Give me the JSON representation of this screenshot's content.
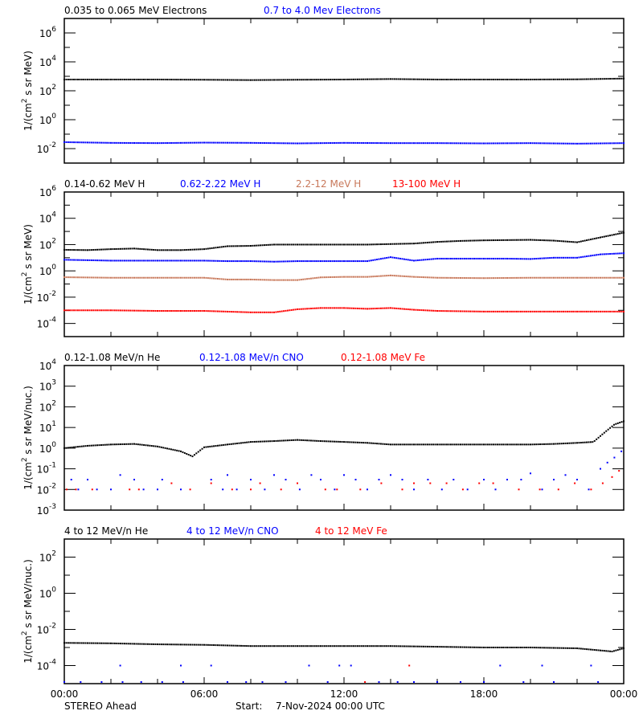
{
  "chart_data": [
    {
      "type": "scatter",
      "ylabel_parts": [
        "1/(cm",
        "2",
        " s sr MeV)"
      ],
      "yscale": "log",
      "ylim": [
        0.001,
        10000000.0
      ],
      "ytick_labels": [
        {
          "exp": "6"
        },
        {
          "exp": "4"
        },
        {
          "exp": "2"
        },
        {
          "exp": "0"
        },
        {
          "exp": "-2"
        }
      ],
      "ytick_exps": [
        6,
        4,
        2,
        0,
        -2
      ],
      "minor_exps": [
        5,
        3,
        1,
        -1
      ],
      "series": [
        {
          "name": "0.035 to 0.065 MeV Electrons",
          "color": "#000000",
          "hours": [
            0,
            2,
            4,
            6,
            8,
            10,
            12,
            14,
            16,
            18,
            20,
            22,
            24
          ],
          "values": [
            600,
            600,
            600,
            580,
            550,
            580,
            600,
            650,
            600,
            600,
            600,
            620,
            700
          ]
        },
        {
          "name": "0.7 to 4.0 Mev Electrons",
          "color": "#0000ff",
          "hours": [
            0,
            2,
            4,
            6,
            8,
            10,
            12,
            14,
            16,
            18,
            20,
            22,
            24
          ],
          "values": [
            0.028,
            0.025,
            0.024,
            0.026,
            0.025,
            0.023,
            0.025,
            0.024,
            0.024,
            0.023,
            0.024,
            0.022,
            0.024
          ]
        }
      ]
    },
    {
      "type": "scatter",
      "ylabel_parts": [
        "1/(cm",
        "2",
        " s sr MeV)"
      ],
      "yscale": "log",
      "ylim": [
        1e-05,
        1000000.0
      ],
      "ytick_labels": [
        {
          "exp": "6"
        },
        {
          "exp": "4"
        },
        {
          "exp": "2"
        },
        {
          "exp": "0"
        },
        {
          "exp": "-2"
        },
        {
          "exp": "-4"
        }
      ],
      "ytick_exps": [
        6,
        4,
        2,
        0,
        -2,
        -4
      ],
      "minor_exps": [
        5,
        3,
        1,
        -1,
        -3
      ],
      "series": [
        {
          "name": "0.14-0.62 MeV H",
          "color": "#000000",
          "hours": [
            0,
            1,
            2,
            3,
            4,
            5,
            6,
            7,
            8,
            9,
            10,
            11,
            12,
            13,
            14,
            15,
            16,
            17,
            18,
            19,
            20,
            21,
            22,
            23,
            24
          ],
          "values": [
            40,
            38,
            45,
            50,
            38,
            38,
            45,
            75,
            80,
            100,
            100,
            100,
            100,
            100,
            110,
            120,
            160,
            190,
            210,
            220,
            230,
            200,
            150,
            350,
            800
          ]
        },
        {
          "name": "0.62-2.22 MeV H",
          "color": "#0000ff",
          "hours": [
            0,
            1,
            2,
            3,
            4,
            5,
            6,
            7,
            8,
            9,
            10,
            11,
            12,
            13,
            14,
            15,
            16,
            17,
            18,
            19,
            20,
            21,
            22,
            23,
            24
          ],
          "values": [
            7,
            6.5,
            6,
            6,
            6,
            6,
            6,
            5.5,
            5.5,
            5,
            5.5,
            5.5,
            5.5,
            5.5,
            11,
            6,
            8.5,
            8.5,
            8.5,
            8.5,
            8,
            10,
            10,
            18,
            22
          ]
        },
        {
          "name": "2.2-12 MeV H",
          "color": "#c8785a",
          "hours": [
            0,
            2,
            4,
            6,
            7,
            8,
            9,
            10,
            11,
            12,
            13,
            14,
            15,
            16,
            18,
            20,
            22,
            24
          ],
          "values": [
            0.33,
            0.3,
            0.3,
            0.3,
            0.22,
            0.22,
            0.2,
            0.2,
            0.32,
            0.35,
            0.35,
            0.45,
            0.35,
            0.3,
            0.28,
            0.3,
            0.3,
            0.3
          ]
        },
        {
          "name": "13-100 MeV H",
          "color": "#ff0000",
          "hours": [
            0,
            2,
            4,
            6,
            8,
            9,
            10,
            11,
            12,
            13,
            14,
            15,
            16,
            18,
            20,
            22,
            24
          ],
          "values": [
            0.001,
            0.001,
            0.0009,
            0.0009,
            0.0007,
            0.0007,
            0.0012,
            0.0015,
            0.0015,
            0.0013,
            0.0015,
            0.0011,
            0.0009,
            0.0008,
            0.0008,
            0.0008,
            0.0008
          ]
        }
      ]
    },
    {
      "type": "scatter",
      "ylabel_parts": [
        "1/(cm",
        "2",
        " s sr MeV/nuc.)"
      ],
      "yscale": "log",
      "ylim": [
        0.001,
        10000.0
      ],
      "ytick_labels": [
        {
          "exp": "4"
        },
        {
          "exp": "3"
        },
        {
          "exp": "2"
        },
        {
          "exp": "1"
        },
        {
          "exp": "0"
        },
        {
          "exp": "-1"
        },
        {
          "exp": "-2"
        },
        {
          "exp": "-3"
        }
      ],
      "ytick_exps": [
        4,
        3,
        2,
        1,
        0,
        -1,
        -2,
        -3
      ],
      "minor_exps": [],
      "series": [
        {
          "name": "0.12-1.08 MeV/n He",
          "color": "#000000",
          "hours": [
            0,
            1,
            2,
            3,
            4,
            5,
            5.5,
            6,
            7,
            8,
            9,
            10,
            11,
            12,
            13,
            14,
            15,
            16,
            17,
            18,
            19,
            20,
            21,
            22,
            22.7,
            23.2,
            23.6,
            24
          ],
          "values": [
            1.0,
            1.3,
            1.5,
            1.6,
            1.2,
            0.7,
            0.4,
            1.1,
            1.5,
            2.0,
            2.2,
            2.5,
            2.2,
            2.0,
            1.8,
            1.5,
            1.5,
            1.5,
            1.5,
            1.5,
            1.5,
            1.5,
            1.6,
            1.8,
            2.0,
            6,
            14,
            20
          ]
        },
        {
          "name": "0.12-1.08 MeV/n CNO",
          "color": "#0000ff",
          "points": [
            [
              0.3,
              0.03
            ],
            [
              0.6,
              0.01
            ],
            [
              1.0,
              0.03
            ],
            [
              1.4,
              0.01
            ],
            [
              2.0,
              0.01
            ],
            [
              2.4,
              0.05
            ],
            [
              3.0,
              0.03
            ],
            [
              3.4,
              0.01
            ],
            [
              4.0,
              0.01
            ],
            [
              4.2,
              0.03
            ],
            [
              5.0,
              0.01
            ],
            [
              6.3,
              0.03
            ],
            [
              6.8,
              0.01
            ],
            [
              7.0,
              0.05
            ],
            [
              7.4,
              0.01
            ],
            [
              8.0,
              0.03
            ],
            [
              8.6,
              0.01
            ],
            [
              9.0,
              0.05
            ],
            [
              9.5,
              0.03
            ],
            [
              10.1,
              0.01
            ],
            [
              10.6,
              0.05
            ],
            [
              11.0,
              0.03
            ],
            [
              11.6,
              0.01
            ],
            [
              12.0,
              0.05
            ],
            [
              12.5,
              0.03
            ],
            [
              13.0,
              0.01
            ],
            [
              13.5,
              0.03
            ],
            [
              14.0,
              0.05
            ],
            [
              14.5,
              0.03
            ],
            [
              15.0,
              0.01
            ],
            [
              15.6,
              0.03
            ],
            [
              16.2,
              0.01
            ],
            [
              16.7,
              0.03
            ],
            [
              17.3,
              0.01
            ],
            [
              18.0,
              0.03
            ],
            [
              18.5,
              0.01
            ],
            [
              19.0,
              0.03
            ],
            [
              19.6,
              0.03
            ],
            [
              20.0,
              0.06
            ],
            [
              20.5,
              0.01
            ],
            [
              21.0,
              0.03
            ],
            [
              21.5,
              0.05
            ],
            [
              22.0,
              0.03
            ],
            [
              22.5,
              0.01
            ],
            [
              23.0,
              0.1
            ],
            [
              23.3,
              0.2
            ],
            [
              23.6,
              0.35
            ],
            [
              23.9,
              0.7
            ]
          ]
        },
        {
          "name": "0.12-1.08 MeV Fe",
          "color": "#ff0000",
          "points": [
            [
              0.1,
              0.01
            ],
            [
              0.5,
              0.01
            ],
            [
              1.2,
              0.01
            ],
            [
              2.8,
              0.01
            ],
            [
              3.2,
              0.01
            ],
            [
              4.6,
              0.02
            ],
            [
              5.4,
              0.01
            ],
            [
              6.3,
              0.02
            ],
            [
              7.2,
              0.01
            ],
            [
              8.0,
              0.01
            ],
            [
              8.4,
              0.02
            ],
            [
              9.3,
              0.01
            ],
            [
              10.0,
              0.02
            ],
            [
              11.2,
              0.01
            ],
            [
              11.7,
              0.01
            ],
            [
              12.7,
              0.01
            ],
            [
              13.6,
              0.02
            ],
            [
              14.5,
              0.01
            ],
            [
              15.0,
              0.02
            ],
            [
              15.7,
              0.02
            ],
            [
              16.4,
              0.02
            ],
            [
              17.1,
              0.01
            ],
            [
              17.8,
              0.02
            ],
            [
              18.4,
              0.02
            ],
            [
              19.5,
              0.01
            ],
            [
              20.4,
              0.01
            ],
            [
              21.2,
              0.01
            ],
            [
              21.9,
              0.02
            ],
            [
              22.6,
              0.01
            ],
            [
              23.1,
              0.02
            ],
            [
              23.5,
              0.04
            ],
            [
              23.8,
              0.08
            ]
          ]
        }
      ]
    },
    {
      "type": "scatter",
      "ylabel_parts": [
        "1/(cm",
        "2",
        " s sr MeV/nuc.)"
      ],
      "yscale": "log",
      "ylim": [
        1e-05,
        1000.0
      ],
      "ytick_labels": [
        {
          "exp": "2"
        },
        {
          "exp": "0"
        },
        {
          "exp": "-2"
        },
        {
          "exp": "-4"
        }
      ],
      "ytick_exps": [
        2,
        0,
        -2,
        -4
      ],
      "minor_exps": [
        1,
        -1,
        -3
      ],
      "series": [
        {
          "name": "4 to 12 MeV/n He",
          "color": "#000000",
          "hours": [
            0,
            2,
            4,
            6,
            8,
            10,
            12,
            14,
            16,
            18,
            20,
            22,
            23.5,
            24
          ],
          "values": [
            0.0018,
            0.0017,
            0.0015,
            0.0014,
            0.0012,
            0.0012,
            0.0012,
            0.0012,
            0.0011,
            0.001,
            0.001,
            0.0009,
            0.0006,
            0.0009
          ]
        },
        {
          "name": "4 to 12 MeV/n CNO",
          "color": "#0000ff",
          "points": [
            [
              0,
              1e-05
            ],
            [
              0.7,
              1e-05
            ],
            [
              1.6,
              1e-05
            ],
            [
              2.4,
              0.0001
            ],
            [
              2.5,
              1e-05
            ],
            [
              3.3,
              1e-05
            ],
            [
              4.2,
              1e-05
            ],
            [
              5.0,
              0.0001
            ],
            [
              5.1,
              1e-05
            ],
            [
              6.3,
              0.0001
            ],
            [
              7.0,
              1e-05
            ],
            [
              7.8,
              1e-05
            ],
            [
              8.5,
              1e-05
            ],
            [
              9.5,
              1e-05
            ],
            [
              10.5,
              0.0001
            ],
            [
              11.3,
              1e-05
            ],
            [
              11.8,
              0.0001
            ],
            [
              12.3,
              0.0001
            ],
            [
              13.5,
              1e-05
            ],
            [
              14.3,
              1e-05
            ],
            [
              15.0,
              1e-05
            ],
            [
              16.0,
              1e-05
            ],
            [
              17.0,
              1e-05
            ],
            [
              18.0,
              1e-05
            ],
            [
              18.7,
              0.0001
            ],
            [
              19.7,
              1e-05
            ],
            [
              20.5,
              0.0001
            ],
            [
              21.0,
              1e-05
            ],
            [
              22.6,
              0.0001
            ],
            [
              22.9,
              1e-05
            ]
          ]
        },
        {
          "name": "4 to 12 MeV Fe",
          "color": "#ff0000",
          "points": [
            [
              12.9,
              1e-05
            ],
            [
              14.8,
              0.0001
            ]
          ]
        }
      ]
    }
  ],
  "xaxis": {
    "tick_labels": [
      "00:00",
      "06:00",
      "12:00",
      "18:00",
      "00:00"
    ],
    "xlim_hours": [
      0,
      24
    ]
  },
  "footer": {
    "spacecraft": "STEREO Ahead",
    "start_label": "Start:",
    "start_value": "7-Nov-2024 00:00 UTC"
  }
}
